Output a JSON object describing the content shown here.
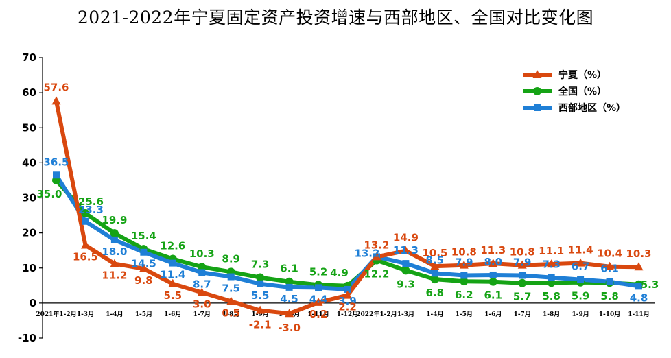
{
  "chart_data": {
    "type": "line",
    "title": "2021-2022年宁夏固定资产投资增速与西部地区、全国对比变化图",
    "categories": [
      "2021年1-2月",
      "1-3月",
      "1-4月",
      "1-5月",
      "1-6月",
      "1-7月",
      "1-8月",
      "1-9月",
      "1-10月",
      "1-11月",
      "1-12月",
      "2022年1-2月",
      "1-3月",
      "1-4月",
      "1-5月",
      "1-6月",
      "1-7月",
      "1-8月",
      "1-9月",
      "1-10月",
      "1-11月"
    ],
    "ylim": [
      -10,
      70
    ],
    "yticks": [
      "-10",
      "0",
      "10",
      "20",
      "30",
      "40",
      "50",
      "60",
      "70"
    ],
    "legend_position": "top-right",
    "series": [
      {
        "name": "宁夏（%）",
        "color": "#d9480f",
        "marker": "triangle",
        "values": [
          57.6,
          16.5,
          11.2,
          9.8,
          5.5,
          3.0,
          0.5,
          -2.1,
          -3.0,
          0.2,
          2.2,
          13.2,
          14.9,
          10.5,
          10.8,
          11.3,
          10.8,
          11.1,
          11.4,
          10.4,
          10.3
        ],
        "labels": [
          "57.6",
          "16.5",
          "11.2",
          "9.8",
          "5.5",
          "3.0",
          "0.5",
          "-2.1",
          "-3.0",
          "0.2",
          "2.2",
          "13.2",
          "14.9",
          "10.5",
          "10.8",
          "11.3",
          "10.8",
          "11.1",
          "11.4",
          "10.4",
          "10.3"
        ]
      },
      {
        "name": "全国（%）",
        "color": "#15a315",
        "marker": "circle",
        "values": [
          35.0,
          25.6,
          19.9,
          15.4,
          12.6,
          10.3,
          8.9,
          7.3,
          6.1,
          5.2,
          4.9,
          12.2,
          9.3,
          6.8,
          6.2,
          6.1,
          5.7,
          5.8,
          5.9,
          5.8,
          5.3
        ],
        "labels": [
          "35.0",
          "25.6",
          "19.9",
          "15.4",
          "12.6",
          "10.3",
          "8.9",
          "7.3",
          "6.1",
          "5.2",
          "4.9",
          "12.2",
          "9.3",
          "6.8",
          "6.2",
          "6.1",
          "5.7",
          "5.8",
          "5.9",
          "5.8",
          "5.3"
        ]
      },
      {
        "name": "西部地区（%）",
        "color": "#1f7fd6",
        "marker": "square",
        "values": [
          36.5,
          23.3,
          18.0,
          14.5,
          11.4,
          8.7,
          7.5,
          5.5,
          4.5,
          4.4,
          3.9,
          13.2,
          11.3,
          8.5,
          7.9,
          8.0,
          7.9,
          7.3,
          6.7,
          6.1,
          4.8
        ],
        "labels": [
          "36.5",
          "23.3",
          "18.0",
          "14.5",
          "11.4",
          "8.7",
          "7.5",
          "5.5",
          "4.5",
          "4.4",
          "3.9",
          "13.2",
          "11.3",
          "8.5",
          "7.9",
          "8.0",
          "7.9",
          "7.3",
          "6.7",
          "6.1",
          "4.8"
        ]
      }
    ]
  }
}
